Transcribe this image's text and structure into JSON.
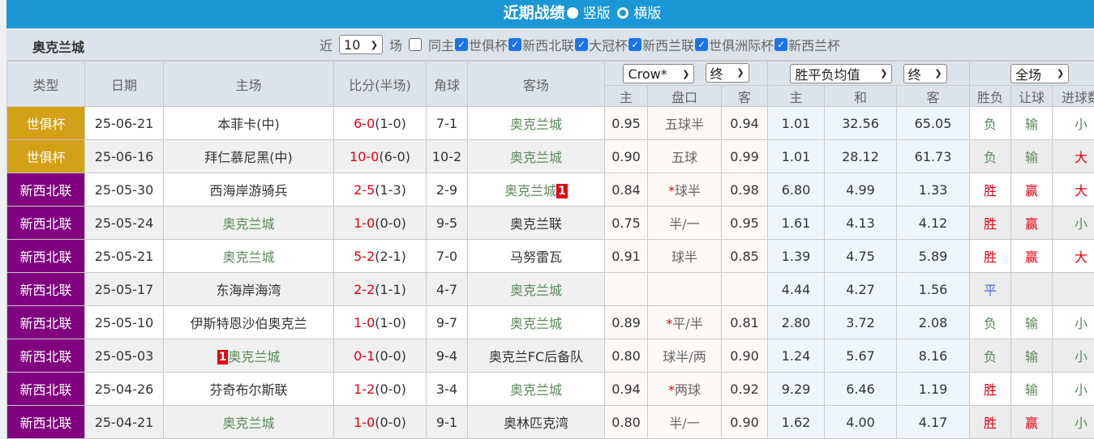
{
  "title": {
    "text": "近期战绩",
    "option1": "竖版",
    "option2": "横版",
    "selected": "竖版"
  },
  "filter": {
    "team": "奥克兰城",
    "prefix": "近",
    "count": "10",
    "suffix": "场",
    "same_home": "同主",
    "same_home_checked": false,
    "competitions": [
      {
        "label": "世俱杯",
        "checked": true
      },
      {
        "label": "新西北联",
        "checked": true
      },
      {
        "label": "大冠杯",
        "checked": true
      },
      {
        "label": "新西兰联",
        "checked": true
      },
      {
        "label": "世俱洲际杯",
        "checked": true
      },
      {
        "label": "新西兰杯",
        "checked": true
      }
    ]
  },
  "header": {
    "type": "类型",
    "date": "日期",
    "home": "主场",
    "score": "比分(半场)",
    "corner": "角球",
    "away": "客场",
    "company_select": "Crow*",
    "odds_stage_select": "终",
    "avg_select": "胜平负均值",
    "avg_stage_select": "终",
    "period_select": "全场",
    "sub": {
      "oh": "主",
      "pan": "盘口",
      "oa": "客",
      "wh": "主",
      "d": "和",
      "wa": "客",
      "sf": "胜负",
      "rq": "让球",
      "goals": "进球数"
    }
  },
  "colors": {
    "title_bar": "#1b97d5",
    "cup": "#d4a017",
    "league": "#800080",
    "team_highlight": "#5a8a5a",
    "red": "#e60012",
    "draw": "#4a6ee0"
  },
  "rows": [
    {
      "type": "世俱杯",
      "type_color": "#d4a017",
      "date": "25-06-21",
      "home": "本菲卡(中)",
      "home_hl": false,
      "home_rc": "",
      "score": "6-0",
      "half": "(1-0)",
      "corner": "7-1",
      "away": "奥克兰城",
      "away_hl": true,
      "away_rc": "",
      "oh": "0.95",
      "pan": "五球半",
      "star": false,
      "oa": "0.94",
      "wh": "1.01",
      "d": "32.56",
      "wa": "65.05",
      "sf": "负",
      "rq": "输",
      "goals": "小"
    },
    {
      "type": "世俱杯",
      "type_color": "#d4a017",
      "date": "25-06-16",
      "home": "拜仁慕尼黑(中)",
      "home_hl": false,
      "home_rc": "",
      "score": "10-0",
      "half": "(6-0)",
      "corner": "10-2",
      "away": "奥克兰城",
      "away_hl": true,
      "away_rc": "",
      "oh": "0.90",
      "pan": "五球",
      "star": false,
      "oa": "0.99",
      "wh": "1.01",
      "d": "28.12",
      "wa": "61.73",
      "sf": "负",
      "rq": "输",
      "goals": "大"
    },
    {
      "type": "新西北联",
      "type_color": "#800080",
      "date": "25-05-30",
      "home": "西海岸游骑兵",
      "home_hl": false,
      "home_rc": "",
      "score": "2-5",
      "half": "(1-3)",
      "corner": "2-9",
      "away": "奥克兰城",
      "away_hl": true,
      "away_rc": "1",
      "oh": "0.84",
      "pan": "球半",
      "star": true,
      "oa": "0.98",
      "wh": "6.80",
      "d": "4.99",
      "wa": "1.33",
      "sf": "胜",
      "rq": "赢",
      "goals": "大"
    },
    {
      "type": "新西北联",
      "type_color": "#800080",
      "date": "25-05-24",
      "home": "奥克兰城",
      "home_hl": true,
      "home_rc": "",
      "score": "1-0",
      "half": "(0-0)",
      "corner": "9-5",
      "away": "奥克兰联",
      "away_hl": false,
      "away_rc": "",
      "oh": "0.75",
      "pan": "半/一",
      "star": false,
      "oa": "0.95",
      "wh": "1.61",
      "d": "4.13",
      "wa": "4.12",
      "sf": "胜",
      "rq": "赢",
      "goals": "小"
    },
    {
      "type": "新西北联",
      "type_color": "#800080",
      "date": "25-05-21",
      "home": "奥克兰城",
      "home_hl": true,
      "home_rc": "",
      "score": "5-2",
      "half": "(2-1)",
      "corner": "7-0",
      "away": "马努雷瓦",
      "away_hl": false,
      "away_rc": "",
      "oh": "0.91",
      "pan": "球半",
      "star": false,
      "oa": "0.85",
      "wh": "1.39",
      "d": "4.75",
      "wa": "5.89",
      "sf": "胜",
      "rq": "赢",
      "goals": "大"
    },
    {
      "type": "新西北联",
      "type_color": "#800080",
      "date": "25-05-17",
      "home": "东海岸海湾",
      "home_hl": false,
      "home_rc": "",
      "score": "2-2",
      "half": "(1-1)",
      "corner": "4-7",
      "away": "奥克兰城",
      "away_hl": true,
      "away_rc": "",
      "oh": "",
      "pan": "",
      "star": false,
      "oa": "",
      "wh": "4.44",
      "d": "4.27",
      "wa": "1.56",
      "sf": "平",
      "rq": "",
      "goals": ""
    },
    {
      "type": "新西北联",
      "type_color": "#800080",
      "date": "25-05-10",
      "home": "伊斯特恩沙伯奥克兰",
      "home_hl": false,
      "home_rc": "",
      "score": "1-0",
      "half": "(1-0)",
      "corner": "9-7",
      "away": "奥克兰城",
      "away_hl": true,
      "away_rc": "",
      "oh": "0.89",
      "pan": "平/半",
      "star": true,
      "oa": "0.81",
      "wh": "2.80",
      "d": "3.72",
      "wa": "2.08",
      "sf": "负",
      "rq": "输",
      "goals": "小"
    },
    {
      "type": "新西北联",
      "type_color": "#800080",
      "date": "25-05-03",
      "home": "奥克兰城",
      "home_hl": true,
      "home_rc": "1",
      "score": "0-1",
      "half": "(0-0)",
      "corner": "9-4",
      "away": "奥克兰FC后备队",
      "away_hl": false,
      "away_rc": "",
      "oh": "0.80",
      "pan": "球半/两",
      "star": false,
      "oa": "0.90",
      "wh": "1.24",
      "d": "5.67",
      "wa": "8.16",
      "sf": "负",
      "rq": "输",
      "goals": "小"
    },
    {
      "type": "新西北联",
      "type_color": "#800080",
      "date": "25-04-26",
      "home": "芬奇布尔斯联",
      "home_hl": false,
      "home_rc": "",
      "score": "1-2",
      "half": "(0-0)",
      "corner": "3-4",
      "away": "奥克兰城",
      "away_hl": true,
      "away_rc": "",
      "oh": "0.94",
      "pan": "两球",
      "star": true,
      "oa": "0.92",
      "wh": "9.29",
      "d": "6.46",
      "wa": "1.19",
      "sf": "胜",
      "rq": "输",
      "goals": "小"
    },
    {
      "type": "新西北联",
      "type_color": "#800080",
      "date": "25-04-21",
      "home": "奥克兰城",
      "home_hl": true,
      "home_rc": "",
      "score": "1-0",
      "half": "(0-0)",
      "corner": "9-1",
      "away": "奥林匹克湾",
      "away_hl": false,
      "away_rc": "",
      "oh": "0.80",
      "pan": "半/一",
      "star": false,
      "oa": "0.90",
      "wh": "1.62",
      "d": "4.00",
      "wa": "4.17",
      "sf": "胜",
      "rq": "赢",
      "goals": "小"
    }
  ]
}
